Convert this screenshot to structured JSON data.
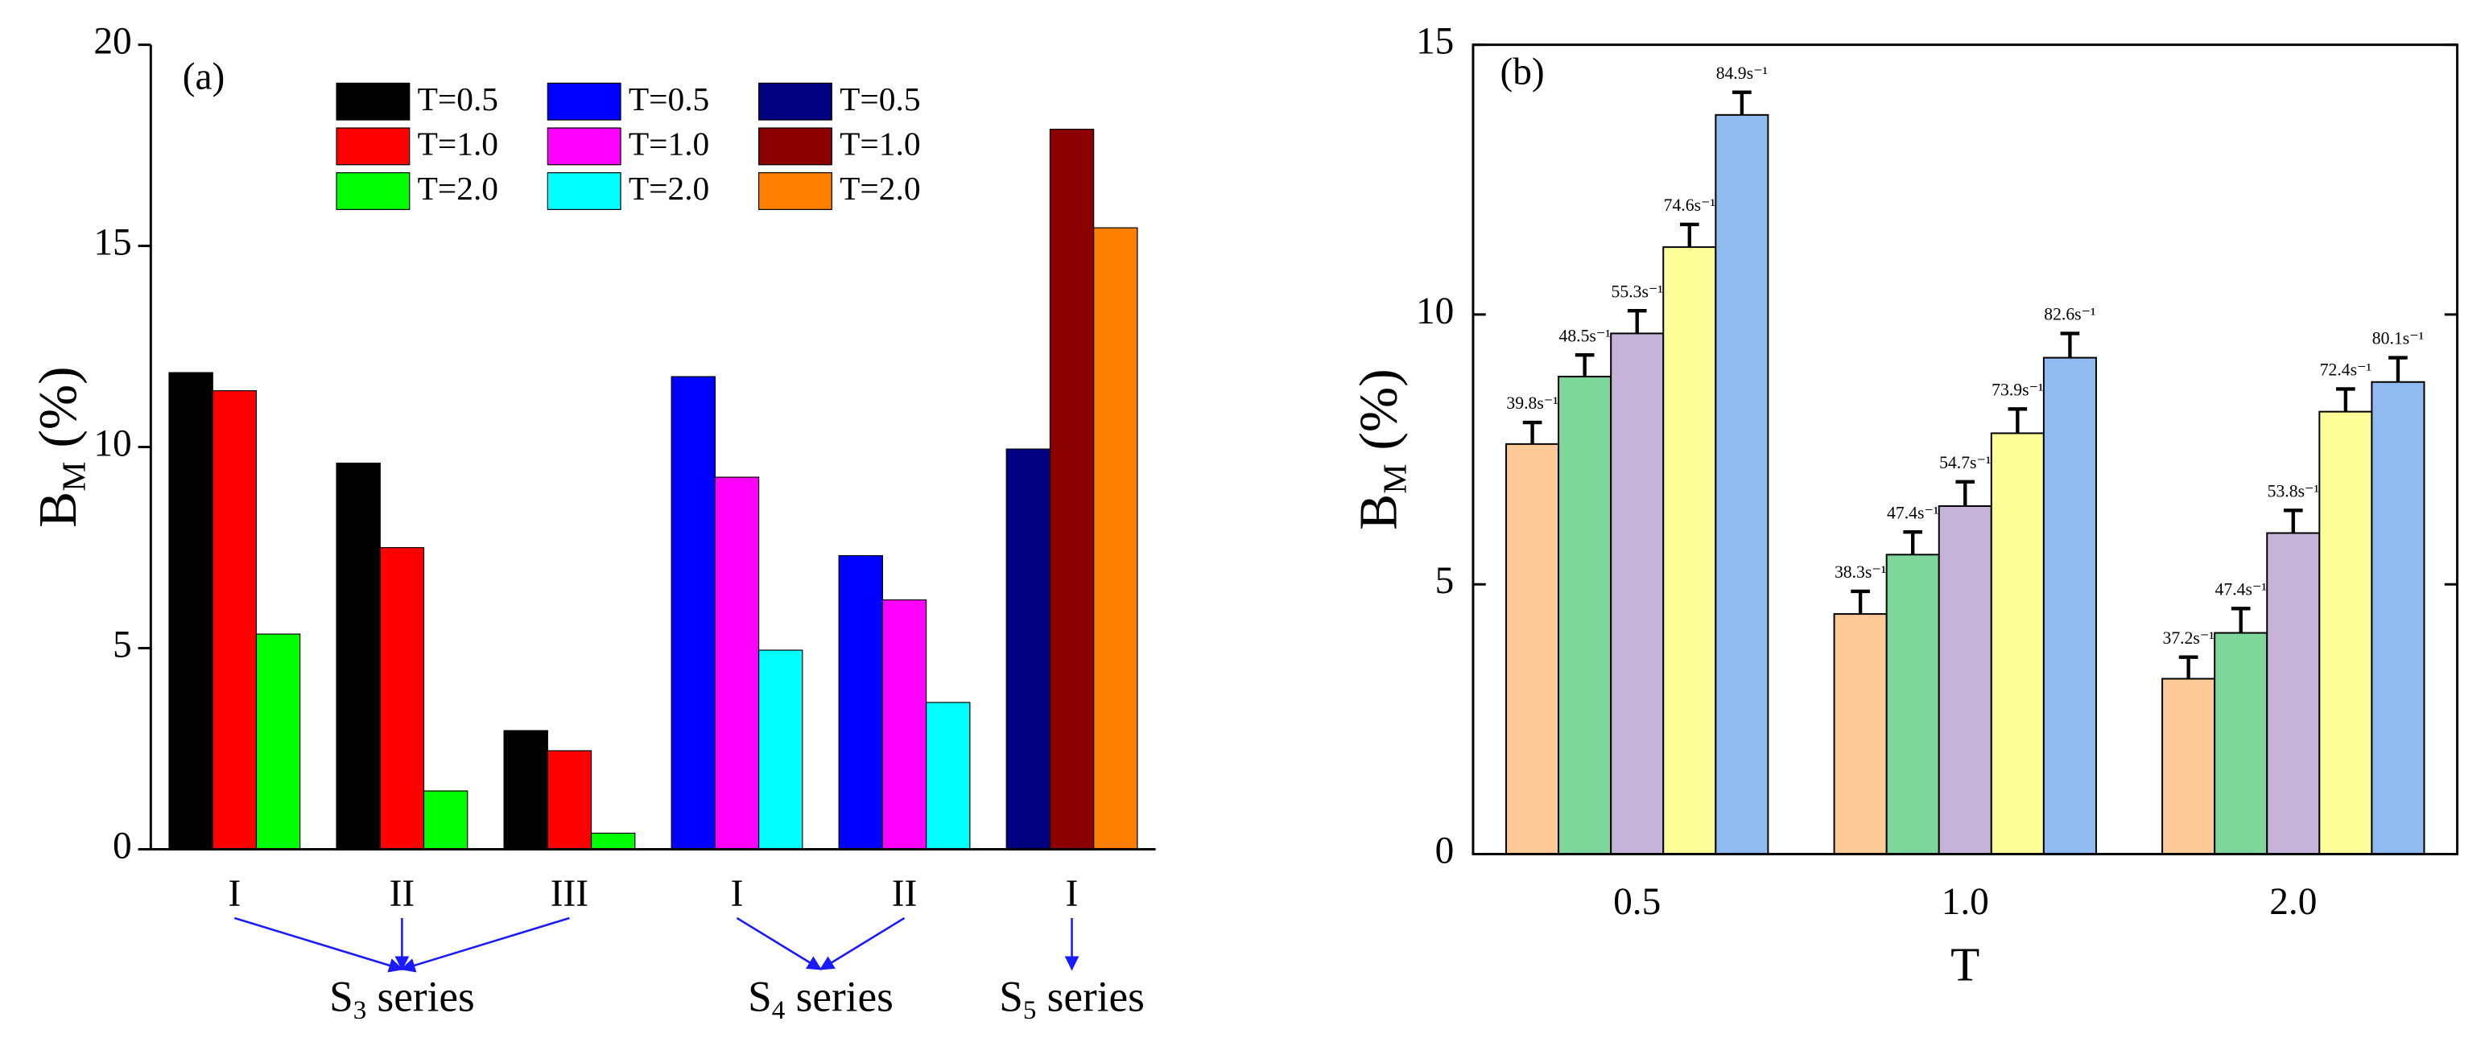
{
  "chart_data": [
    {
      "type": "grouped_bar",
      "annotation": "(a)",
      "ylabel": {
        "base": "B",
        "subscript": "M",
        "suffix": "(%)"
      },
      "ylim": [
        0,
        20
      ],
      "yticks": [
        0,
        5,
        10,
        15,
        20
      ],
      "groups": [
        {
          "label": {
            "base": "S",
            "subscript": "3",
            "suffix": "series"
          },
          "categories": [
            "I",
            "II",
            "III"
          ],
          "series": [
            {
              "name": "T=0.5",
              "color": "#000000",
              "values": [
                11.85,
                9.6,
                2.95
              ]
            },
            {
              "name": "T=1.0",
              "color": "#ff0000",
              "values": [
                11.4,
                7.5,
                2.45
              ]
            },
            {
              "name": "T=2.0",
              "color": "#00ff00",
              "values": [
                5.35,
                1.45,
                0.4
              ]
            }
          ]
        },
        {
          "label": {
            "base": "S",
            "subscript": "4",
            "suffix": "series"
          },
          "categories": [
            "I",
            "II"
          ],
          "series": [
            {
              "name": "T=0.5",
              "color": "#0000ff",
              "values": [
                11.75,
                7.3
              ]
            },
            {
              "name": "T=1.0",
              "color": "#ff00ff",
              "values": [
                9.25,
                6.2
              ]
            },
            {
              "name": "T=2.0",
              "color": "#00ffff",
              "values": [
                4.95,
                3.65
              ]
            }
          ]
        },
        {
          "label": {
            "base": "S",
            "subscript": "5",
            "suffix": "series"
          },
          "categories": [
            "I"
          ],
          "series": [
            {
              "name": "T=0.5",
              "color": "#000080",
              "values": [
                9.95
              ]
            },
            {
              "name": "T=1.0",
              "color": "#8b0000",
              "values": [
                17.9
              ]
            },
            {
              "name": "T=2.0",
              "color": "#ff8000",
              "values": [
                15.45
              ]
            }
          ]
        }
      ]
    },
    {
      "type": "error_bar",
      "annotation": "(b)",
      "xlabel": "T",
      "ylabel": {
        "base": "B",
        "subscript": "M",
        "suffix": "(%)"
      },
      "categories": [
        "0.5",
        "1.0",
        "2.0"
      ],
      "ylim": [
        0,
        15
      ],
      "yticks": [
        0,
        5,
        10,
        15
      ],
      "series": [
        {
          "color": "#fdc996",
          "values": [
            7.6,
            4.45,
            3.25
          ],
          "errors": [
            0.4,
            0.42,
            0.4
          ],
          "labels": [
            "39.8s⁻¹",
            "38.3s⁻¹",
            "37.2s⁻¹"
          ]
        },
        {
          "color": "#7fd69a",
          "values": [
            8.85,
            5.55,
            4.1
          ],
          "errors": [
            0.4,
            0.42,
            0.45
          ],
          "labels": [
            "48.5s⁻¹",
            "47.4s⁻¹",
            "47.4s⁻¹"
          ]
        },
        {
          "color": "#c6b3d9",
          "values": [
            9.65,
            6.45,
            5.95
          ],
          "errors": [
            0.42,
            0.45,
            0.42
          ],
          "labels": [
            "55.3s⁻¹",
            "54.7s⁻¹",
            "53.8s⁻¹"
          ]
        },
        {
          "color": "#ffff99",
          "values": [
            11.25,
            7.8,
            8.2
          ],
          "errors": [
            0.42,
            0.45,
            0.42
          ],
          "labels": [
            "74.6s⁻¹",
            "73.9s⁻¹",
            "72.4s⁻¹"
          ]
        },
        {
          "color": "#8fbbf0",
          "values": [
            13.7,
            9.2,
            8.75
          ],
          "errors": [
            0.42,
            0.45,
            0.45
          ],
          "labels": [
            "84.9s⁻¹",
            "82.6s⁻¹",
            "80.1s⁻¹"
          ]
        }
      ]
    }
  ]
}
